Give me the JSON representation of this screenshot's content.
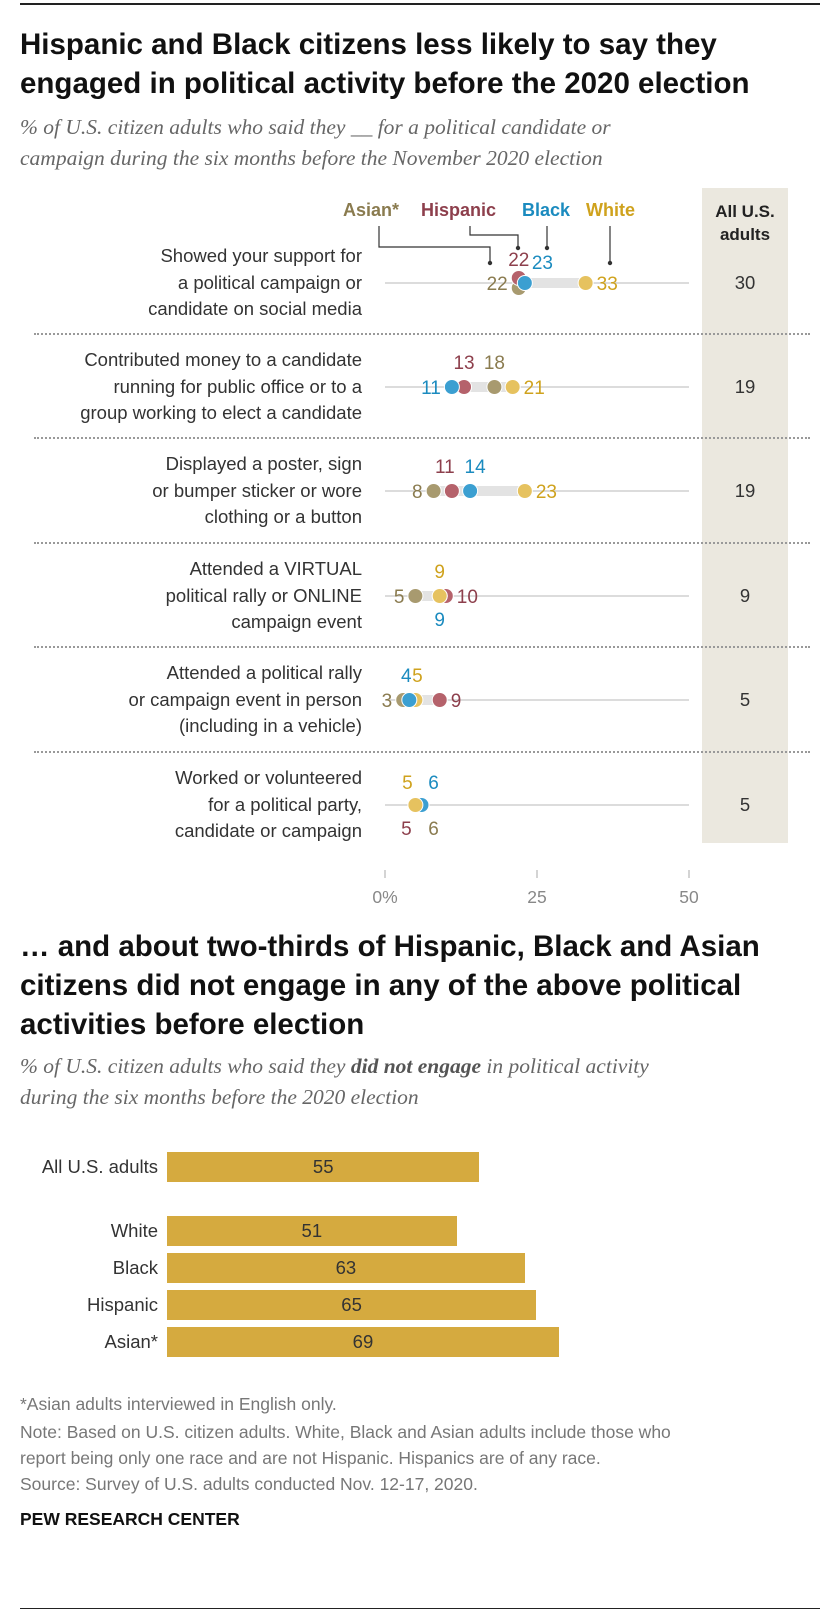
{
  "chart1": {
    "title_line1": "Hispanic and Black citizens less likely to say they",
    "title_line2": "engaged in political activity before the 2020 election",
    "subtitle_line1": "% of U.S. citizen adults who said they __ for a political candidate or",
    "subtitle_line2": "campaign during the six months before the November 2020 election",
    "legend": {
      "asian": "Asian*",
      "hispanic": "Hispanic",
      "black": "Black",
      "white": "White"
    },
    "all_header_line1": "All U.S.",
    "all_header_line2": "adults",
    "colors": {
      "asian": "#a89a6f",
      "hispanic": "#b5626b",
      "black": "#3b9fd1",
      "white": "#e6c25f",
      "asian_text": "#8a7b4f",
      "hispanic_text": "#8d3f4c",
      "black_text": "#1b8bbf",
      "white_text": "#cfa21d"
    }
  },
  "chart_data": [
    {
      "type": "scatter",
      "subtype": "dot-plot",
      "title": "Hispanic and Black citizens less likely to say they engaged in political activity before the 2020 election",
      "xlabel": "",
      "ylabel": "",
      "xlim": [
        0,
        50
      ],
      "x_ticks": [
        "0%",
        "25",
        "50"
      ],
      "series_names": [
        "Asian*",
        "Hispanic",
        "Black",
        "White"
      ],
      "rows": [
        {
          "label_lines": [
            "Showed your support for",
            "a political campaign or",
            "candidate on social media"
          ],
          "values": {
            "asian": 22,
            "hispanic": 22,
            "black": 23,
            "white": 33
          },
          "all": 30
        },
        {
          "label_lines": [
            "Contributed money to a candidate",
            "running  for public office or to a",
            "group working to elect a candidate"
          ],
          "values": {
            "asian": 18,
            "hispanic": 13,
            "black": 11,
            "white": 21
          },
          "all": 19
        },
        {
          "label_lines": [
            "Displayed a poster, sign",
            "or bumper sticker or wore",
            "clothing or a button"
          ],
          "values": {
            "asian": 8,
            "hispanic": 11,
            "black": 14,
            "white": 23
          },
          "all": 19
        },
        {
          "label_lines": [
            "Attended a VIRTUAL",
            "political rally or ONLINE",
            "campaign event"
          ],
          "values": {
            "asian": 5,
            "hispanic": 10,
            "black": 9,
            "white": 9
          },
          "all": 9
        },
        {
          "label_lines": [
            "Attended a political rally",
            "or campaign event in person",
            "(including in a vehicle)"
          ],
          "values": {
            "asian": 3,
            "hispanic": 9,
            "black": 4,
            "white": 5
          },
          "all": 5
        },
        {
          "label_lines": [
            "Worked or volunteered",
            "for a political party,",
            "candidate or campaign"
          ],
          "values": {
            "asian": 6,
            "hispanic": 5,
            "black": 6,
            "white": 5
          },
          "all": 5
        }
      ]
    },
    {
      "type": "bar",
      "orientation": "horizontal",
      "title": "... and about two-thirds of Hispanic, Black and Asian citizens did not engage in any of the above political activities before election",
      "categories": [
        "All U.S. adults",
        "White",
        "Black",
        "Hispanic",
        "Asian*"
      ],
      "values": [
        55,
        51,
        63,
        65,
        69
      ],
      "value_labels": [
        "55",
        "51",
        "63",
        "65",
        "69"
      ],
      "color": "#d5aa3f",
      "xlim": [
        0,
        100
      ]
    }
  ],
  "chart2": {
    "title_line1": "… and about two-thirds of Hispanic, Black and Asian",
    "title_line2": "citizens did not engage in any of the above political",
    "title_line3": "activities before election",
    "subtitle_pre": "% of U.S. citizen adults who said they ",
    "subtitle_bold": "did not engage",
    "subtitle_post": " in political activity",
    "subtitle_line2": "during the six months before the 2020 election"
  },
  "notes": {
    "asterisk": "*Asian adults interviewed in English only.",
    "note_line1": "Note: Based on U.S. citizen adults. White, Black and Asian adults include those who",
    "note_line2": "report being only one race and are not Hispanic. Hispanics are of any race.",
    "source": "Source: Survey of U.S. adults conducted Nov. 12-17, 2020.",
    "brand": "PEW RESEARCH CENTER"
  }
}
